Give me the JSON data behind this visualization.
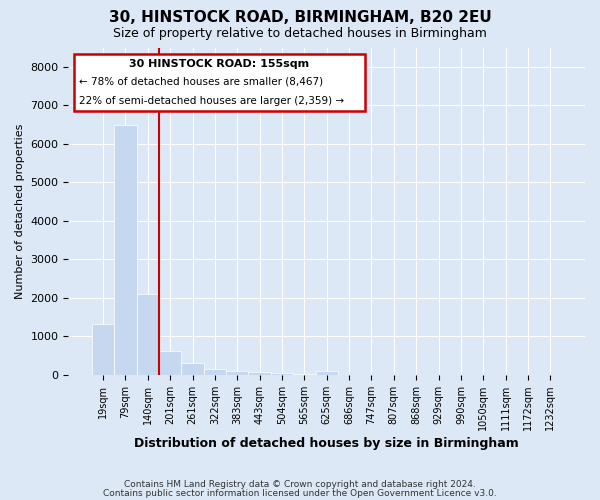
{
  "title1": "30, HINSTOCK ROAD, BIRMINGHAM, B20 2EU",
  "title2": "Size of property relative to detached houses in Birmingham",
  "xlabel": "Distribution of detached houses by size in Birmingham",
  "ylabel": "Number of detached properties",
  "footnote1": "Contains HM Land Registry data © Crown copyright and database right 2024.",
  "footnote2": "Contains public sector information licensed under the Open Government Licence v3.0.",
  "annotation_line1": "30 HINSTOCK ROAD: 155sqm",
  "annotation_line2": "← 78% of detached houses are smaller (8,467)",
  "annotation_line3": "22% of semi-detached houses are larger (2,359) →",
  "bar_color": "#c5d8ef",
  "bar_edge_color": "#c5d8ef",
  "redline_color": "#cc0000",
  "annotation_box_color": "#cc0000",
  "categories": [
    "19sqm",
    "79sqm",
    "140sqm",
    "201sqm",
    "261sqm",
    "322sqm",
    "383sqm",
    "443sqm",
    "504sqm",
    "565sqm",
    "625sqm",
    "686sqm",
    "747sqm",
    "807sqm",
    "868sqm",
    "929sqm",
    "990sqm",
    "1050sqm",
    "1111sqm",
    "1172sqm",
    "1232sqm"
  ],
  "values": [
    1320,
    6500,
    2100,
    620,
    300,
    150,
    100,
    70,
    50,
    30,
    100,
    0,
    0,
    0,
    0,
    0,
    0,
    0,
    0,
    0,
    0
  ],
  "redline_x": 2.5,
  "ylim": [
    0,
    8500
  ],
  "yticks": [
    0,
    1000,
    2000,
    3000,
    4000,
    5000,
    6000,
    7000,
    8000
  ],
  "bg_color": "#dce8f5",
  "grid_color": "#ffffff",
  "title_fontsize": 11,
  "subtitle_fontsize": 9
}
